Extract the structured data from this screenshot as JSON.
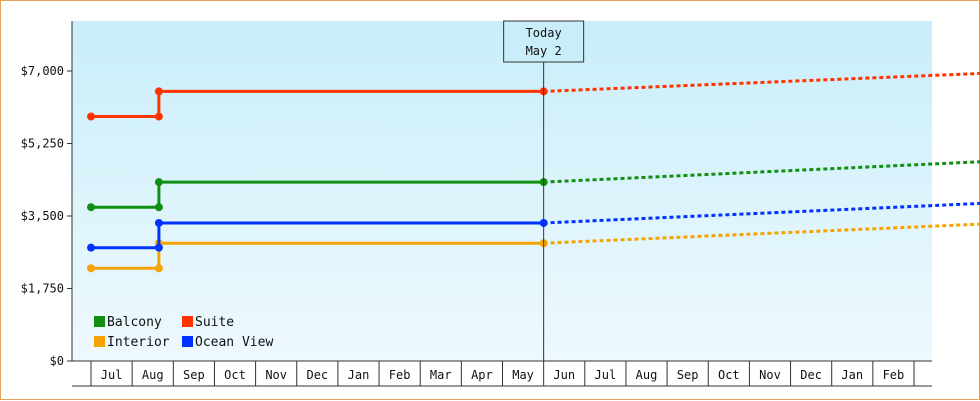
{
  "today_marker": {
    "line1": "Today",
    "line2": "May 2"
  },
  "chart_data": {
    "type": "line",
    "y_ticks": [
      "$0",
      "$1,750",
      "$3,500",
      "$5,250",
      "$7,000"
    ],
    "ylim": [
      0,
      8400
    ],
    "x_months": [
      "Jul",
      "Aug",
      "Sep",
      "Oct",
      "Nov",
      "Dec",
      "Jan",
      "Feb",
      "Mar",
      "Apr",
      "May",
      "Jun",
      "Jul",
      "Aug",
      "Sep",
      "Oct",
      "Nov",
      "Dec",
      "Jan",
      "Feb"
    ],
    "grid": false,
    "legend_placement": "bottom-left",
    "background_gradient": [
      "#c9eefa",
      "#eef9fd"
    ],
    "series": [
      {
        "name": "Balcony",
        "color": "#109010",
        "actual": [
          [
            -0.5,
            3800
          ],
          [
            1.15,
            3800
          ],
          [
            1.15,
            4420
          ],
          [
            10.5,
            4420
          ]
        ],
        "projected": [
          [
            10.5,
            4420
          ],
          [
            21.5,
            4940
          ]
        ]
      },
      {
        "name": "Suite",
        "color": "#ff3300",
        "actual": [
          [
            -0.5,
            6040
          ],
          [
            1.15,
            6040
          ],
          [
            1.15,
            6660
          ],
          [
            10.5,
            6660
          ]
        ],
        "projected": [
          [
            10.5,
            6660
          ],
          [
            21.5,
            7120
          ]
        ]
      },
      {
        "name": "Interior",
        "color": "#f5a300",
        "actual": [
          [
            -0.5,
            2290
          ],
          [
            1.15,
            2290
          ],
          [
            1.15,
            2910
          ],
          [
            10.5,
            2910
          ]
        ],
        "projected": [
          [
            10.5,
            2910
          ],
          [
            21.5,
            3400
          ]
        ]
      },
      {
        "name": "Ocean View",
        "color": "#0033ff",
        "actual": [
          [
            -0.5,
            2800
          ],
          [
            1.15,
            2800
          ],
          [
            1.15,
            3410
          ],
          [
            10.5,
            3410
          ]
        ],
        "projected": [
          [
            10.5,
            3410
          ],
          [
            21.5,
            3910
          ]
        ]
      }
    ],
    "today_x": 10.5
  }
}
